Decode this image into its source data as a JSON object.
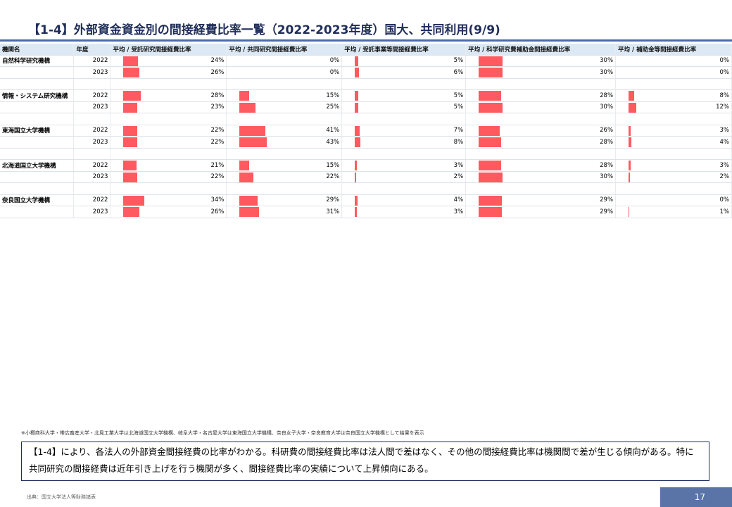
{
  "title": "【1-4】外部資金資金別の間接経費比率一覧（2022-2023年度）国大、共同利用(9/9)",
  "table": {
    "headers": [
      "機関名",
      "年度",
      "平均 / 受託研究間接経費比率",
      "平均 / 共同研究間接経費比率",
      "平均 / 受託事業等間接経費比率",
      "平均 / 科学研究費補助金間接経費比率",
      "平均 / 補助金等間接経費比率"
    ],
    "bar_color": "#ff5a5f",
    "groups": [
      {
        "name": "自然科学研究機構",
        "rows": [
          {
            "year": "2022",
            "values": [
              24,
              0,
              5,
              30,
              0
            ]
          },
          {
            "year": "2023",
            "values": [
              26,
              0,
              6,
              30,
              0
            ]
          }
        ]
      },
      {
        "name": "情報・システム研究機構",
        "rows": [
          {
            "year": "2022",
            "values": [
              28,
              15,
              5,
              28,
              8
            ]
          },
          {
            "year": "2023",
            "values": [
              23,
              25,
              5,
              30,
              12
            ]
          }
        ]
      },
      {
        "name": "東海国立大学機構",
        "rows": [
          {
            "year": "2022",
            "values": [
              22,
              41,
              7,
              26,
              3
            ]
          },
          {
            "year": "2023",
            "values": [
              22,
              43,
              8,
              28,
              4
            ]
          }
        ]
      },
      {
        "name": "北海道国立大学機構",
        "rows": [
          {
            "year": "2022",
            "values": [
              21,
              15,
              3,
              28,
              3
            ]
          },
          {
            "year": "2023",
            "values": [
              22,
              22,
              2,
              30,
              2
            ]
          }
        ]
      },
      {
        "name": "奈良国立大学機構",
        "rows": [
          {
            "year": "2022",
            "values": [
              34,
              29,
              4,
              29,
              0
            ]
          },
          {
            "year": "2023",
            "values": [
              26,
              31,
              3,
              29,
              1
            ]
          }
        ]
      }
    ]
  },
  "note": "※小樽商科大学・帯広畜産大学・北見工業大学は北海道国立大学機構、岐阜大学・名古屋大学は東海国立大学機構、奈良女子大学・奈良教育大学は奈良国立大学機構として結果を表示",
  "summary": "【1-4】により、各法人の外部資金間接経費の比率がわかる。科研費の間接経費比率は法人間で差はなく、その他の間接経費比率は機関間で差が生じる傾向がある。特に共同研究の間接経費は近年引き上げを行う機関が多く、間接経費比率の実績について上昇傾向にある。",
  "source": "出典：国立大学法人等財務諸表",
  "page_number": "17"
}
